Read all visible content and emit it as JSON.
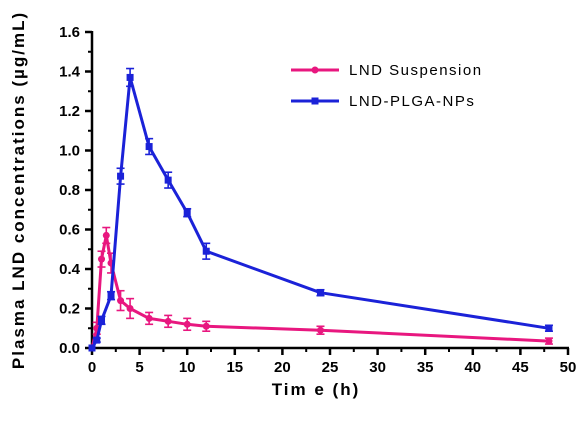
{
  "chart_data": {
    "type": "line",
    "xlabel": "Tim e (h)",
    "ylabel": "Plasma LND concentrations (µg/mL)",
    "xlim": [
      0,
      50
    ],
    "ylim": [
      0,
      1.6
    ],
    "x_ticks": [
      "0",
      "5",
      "10",
      "15",
      "20",
      "25",
      "30",
      "35",
      "40",
      "45",
      "50"
    ],
    "y_ticks": [
      "0.0",
      "0.2",
      "0.4",
      "0.6",
      "0.8",
      "1.0",
      "1.2",
      "1.4",
      "1.6"
    ],
    "grid": false,
    "legend_position": "top-right",
    "series": [
      {
        "name": "LND Suspension",
        "color": "#e8177f",
        "marker": "circle",
        "x": [
          0,
          0.5,
          1,
          1.5,
          2,
          3,
          4,
          6,
          8,
          10,
          12,
          24,
          48
        ],
        "y": [
          0,
          0.1,
          0.45,
          0.57,
          0.43,
          0.24,
          0.2,
          0.15,
          0.135,
          0.12,
          0.11,
          0.09,
          0.035
        ],
        "err": [
          0,
          0.03,
          0.04,
          0.04,
          0.05,
          0.05,
          0.05,
          0.03,
          0.03,
          0.03,
          0.025,
          0.02,
          0.015
        ]
      },
      {
        "name": "LND-PLGA-NPs",
        "color": "#1b22d8",
        "marker": "square",
        "x": [
          0,
          0.5,
          1,
          2,
          3,
          4,
          6,
          8,
          10,
          12,
          24,
          48
        ],
        "y": [
          0,
          0.04,
          0.14,
          0.265,
          0.87,
          1.37,
          1.02,
          0.85,
          0.685,
          0.49,
          0.28,
          0.1
        ],
        "err": [
          0,
          0.01,
          0.02,
          0.02,
          0.04,
          0.045,
          0.04,
          0.04,
          0.02,
          0.04,
          0.015,
          0.015
        ]
      }
    ]
  }
}
